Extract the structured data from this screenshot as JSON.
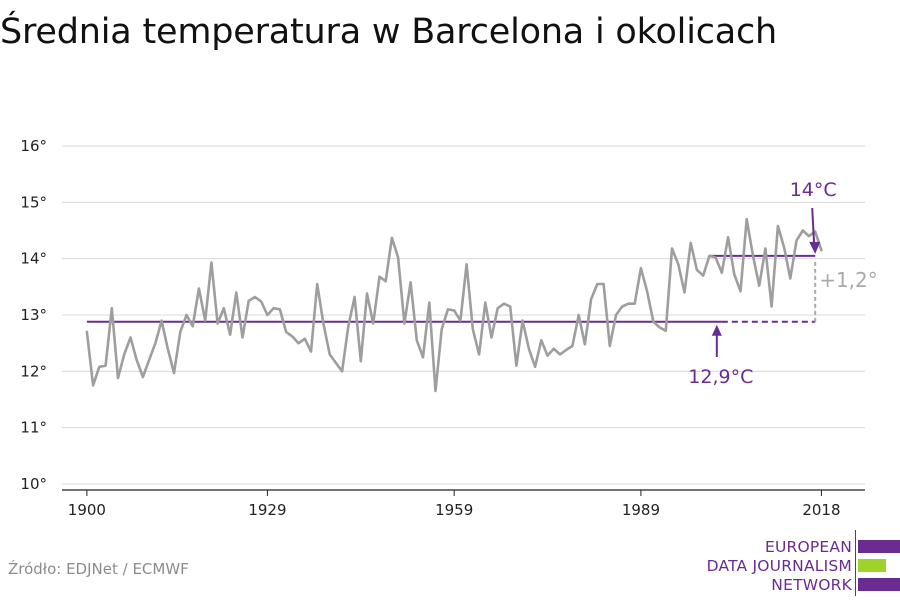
{
  "chart_data": {
    "type": "line",
    "title": "Średnia temperatura w Barcelona i okolicach",
    "xlabel": "",
    "ylabel": "",
    "xlim": [
      1896,
      2025
    ],
    "ylim": [
      10,
      16
    ],
    "yticks": [
      10,
      11,
      12,
      13,
      14,
      15,
      16
    ],
    "ytick_labels": [
      "10°",
      "11°",
      "12°",
      "13°",
      "14°",
      "15°",
      "16°"
    ],
    "xticks": [
      1900,
      1929,
      1959,
      1989,
      2018
    ],
    "xtick_labels": [
      "1900",
      "1929",
      "1959",
      "1989",
      "2018"
    ],
    "grid": true,
    "series": [
      {
        "color": "#9e9e9e",
        "x": [
          1900,
          1901,
          1902,
          1903,
          1904,
          1905,
          1906,
          1907,
          1908,
          1909,
          1910,
          1911,
          1912,
          1913,
          1914,
          1915,
          1916,
          1917,
          1918,
          1919,
          1920,
          1921,
          1922,
          1923,
          1924,
          1925,
          1926,
          1927,
          1928,
          1929,
          1930,
          1931,
          1932,
          1933,
          1934,
          1935,
          1936,
          1937,
          1938,
          1939,
          1940,
          1941,
          1942,
          1943,
          1944,
          1945,
          1946,
          1947,
          1948,
          1949,
          1950,
          1951,
          1952,
          1953,
          1954,
          1955,
          1956,
          1957,
          1958,
          1959,
          1960,
          1961,
          1962,
          1963,
          1964,
          1965,
          1966,
          1967,
          1968,
          1969,
          1970,
          1971,
          1972,
          1973,
          1974,
          1975,
          1976,
          1977,
          1978,
          1979,
          1980,
          1981,
          1982,
          1983,
          1984,
          1985,
          1986,
          1987,
          1988,
          1989,
          1990,
          1991,
          1992,
          1993,
          1994,
          1995,
          1996,
          1997,
          1998,
          1999,
          2000,
          2001,
          2002,
          2003,
          2004,
          2005,
          2006,
          2007,
          2008,
          2009,
          2010,
          2011,
          2012,
          2013,
          2014,
          2015,
          2016,
          2017,
          2018
        ],
        "y": [
          12.7,
          11.75,
          12.08,
          12.1,
          13.12,
          11.88,
          12.3,
          12.6,
          12.2,
          11.9,
          12.2,
          12.5,
          12.9,
          12.4,
          11.97,
          12.7,
          13.0,
          12.8,
          13.47,
          12.9,
          13.93,
          12.85,
          13.12,
          12.65,
          13.4,
          12.6,
          13.25,
          13.32,
          13.24,
          13.0,
          13.12,
          13.1,
          12.7,
          12.62,
          12.5,
          12.58,
          12.35,
          13.55,
          12.85,
          12.3,
          12.15,
          12.0,
          12.8,
          13.32,
          12.18,
          13.38,
          12.85,
          13.68,
          13.6,
          14.37,
          14.02,
          12.85,
          13.58,
          12.55,
          12.25,
          13.22,
          11.65,
          12.75,
          13.1,
          13.08,
          12.9,
          13.9,
          12.75,
          12.3,
          13.22,
          12.6,
          13.12,
          13.2,
          13.15,
          12.1,
          12.9,
          12.4,
          12.08,
          12.55,
          12.28,
          12.4,
          12.3,
          12.38,
          12.45,
          13.0,
          12.48,
          13.28,
          13.55,
          13.55,
          12.45,
          13.0,
          13.15,
          13.2,
          13.2,
          13.83,
          13.42,
          12.88,
          12.78,
          12.72,
          14.18,
          13.9,
          13.4,
          14.28,
          13.8,
          13.7,
          14.05,
          14.02,
          13.75,
          14.38,
          13.72,
          13.42,
          14.7,
          14.05,
          13.52,
          14.18,
          13.15,
          14.58,
          14.2,
          13.65,
          14.32,
          14.5,
          14.4,
          14.48,
          14.15
        ]
      }
    ],
    "reference_lines": [
      {
        "label": "12,9°C",
        "value": 12.88,
        "x_start": 1900,
        "x_end": 2002,
        "x_dashed_end": 2017,
        "color": "#6a2c91"
      },
      {
        "label": "14°C",
        "value": 14.05,
        "x_start": 2000,
        "x_end": 2017,
        "color": "#6a2c91"
      }
    ],
    "difference_annotation": {
      "label": "+1,2°",
      "x": 2017,
      "from": 12.88,
      "to": 14.05,
      "color": "#a9a9a9"
    }
  },
  "source": "Źródło: EDJNet / ECMWF",
  "logo": {
    "lines": [
      "EUROPEAN",
      "DATA JOURNALISM",
      "NETWORK"
    ],
    "colors": [
      "#6a2c91",
      "#a0d22a",
      "#6a2c91"
    ]
  }
}
